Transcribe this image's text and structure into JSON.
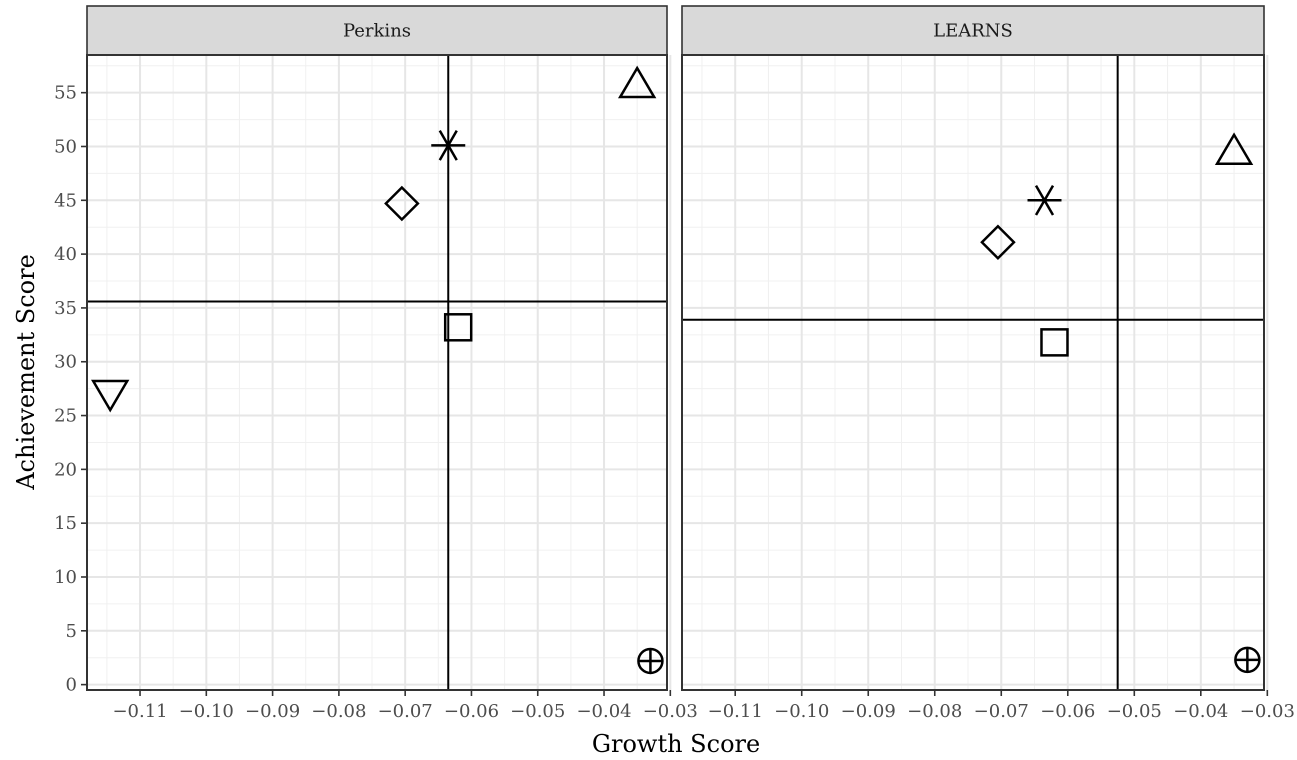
{
  "chart_data": {
    "type": "scatter",
    "xlabel": "Growth Score",
    "ylabel": "Achievement Score",
    "xlim": [
      -0.118,
      -0.0305
    ],
    "ylim": [
      -0.5,
      58.5
    ],
    "x_ticks": [
      -0.11,
      -0.1,
      -0.09,
      -0.08,
      -0.07,
      -0.06,
      -0.05,
      -0.04,
      -0.03
    ],
    "x_tick_labels": [
      "−0.11",
      "−0.10",
      "−0.09",
      "−0.08",
      "−0.07",
      "−0.06",
      "−0.05",
      "−0.04",
      "−0.03"
    ],
    "y_ticks": [
      0,
      5,
      10,
      15,
      20,
      25,
      30,
      35,
      40,
      45,
      50,
      55
    ],
    "y_tick_labels": [
      "0",
      "5",
      "10",
      "15",
      "20",
      "25",
      "30",
      "35",
      "40",
      "45",
      "50",
      "55"
    ],
    "grid": true,
    "legend": "none",
    "panels": [
      {
        "label": "Perkins",
        "ref_x": -0.0635,
        "ref_y": 35.6,
        "points": [
          {
            "shape": "triangle-down",
            "x": -0.1145,
            "y": 27.0
          },
          {
            "shape": "asterisk",
            "x": -0.0635,
            "y": 50.1
          },
          {
            "shape": "diamond",
            "x": -0.0705,
            "y": 44.7
          },
          {
            "shape": "square",
            "x": -0.062,
            "y": 33.2
          },
          {
            "shape": "triangle-up",
            "x": -0.035,
            "y": 55.8
          },
          {
            "shape": "circle-plus",
            "x": -0.033,
            "y": 2.2
          }
        ]
      },
      {
        "label": "LEARNS",
        "ref_x": -0.0525,
        "ref_y": 33.9,
        "points": [
          {
            "shape": "asterisk",
            "x": -0.0635,
            "y": 45.0
          },
          {
            "shape": "diamond",
            "x": -0.0705,
            "y": 41.1
          },
          {
            "shape": "square",
            "x": -0.062,
            "y": 31.8
          },
          {
            "shape": "triangle-up",
            "x": -0.035,
            "y": 49.6
          },
          {
            "shape": "circle-plus",
            "x": -0.033,
            "y": 2.3
          }
        ]
      }
    ]
  }
}
